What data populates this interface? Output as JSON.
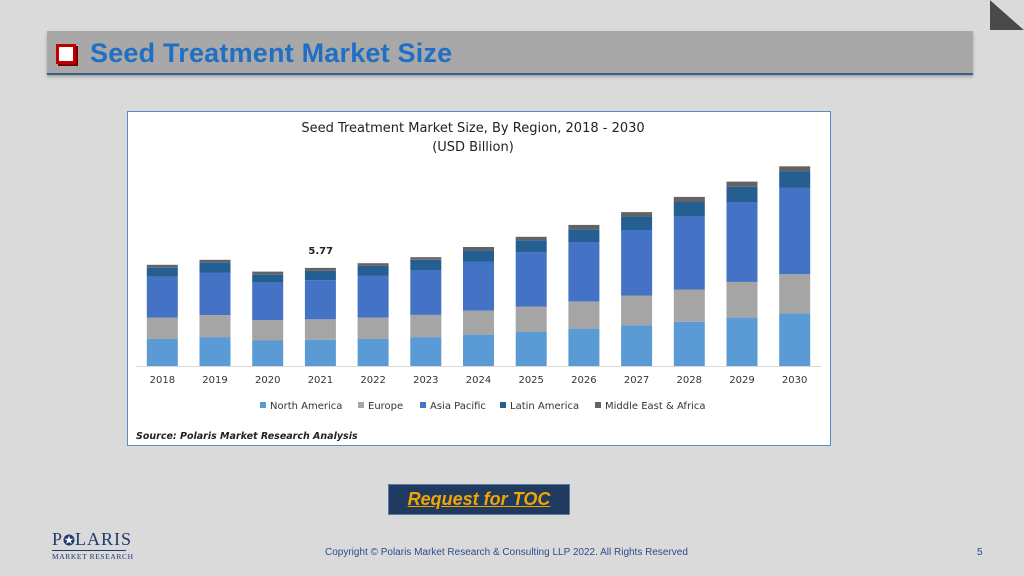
{
  "slide": {
    "title": "Seed Treatment Market Size",
    "toc_label": "Request for TOC",
    "copyright": "Copyright © Polaris Market Research & Consulting LLP 2022. All Rights Reserved",
    "page_number": "5",
    "logo": {
      "main": "POLARIS",
      "sub": "MARKET RESEARCH"
    },
    "colors": {
      "title": "#1f6fc5",
      "accent": "#c00000",
      "toc_bg": "#1f3a5e",
      "toc_text": "#f5a300"
    }
  },
  "chart_data": {
    "type": "bar",
    "stacked": true,
    "title": "Seed Treatment Market Size, By Region, 2018 - 2030",
    "subtitle": "(USD Billion)",
    "categories": [
      "2018",
      "2019",
      "2020",
      "2021",
      "2022",
      "2023",
      "2024",
      "2025",
      "2026",
      "2027",
      "2028",
      "2029",
      "2030"
    ],
    "series": [
      {
        "name": "North America",
        "color": "#5b9bd5",
        "values": [
          1.6,
          1.7,
          1.5,
          1.55,
          1.6,
          1.7,
          1.85,
          2.0,
          2.2,
          2.4,
          2.6,
          2.85,
          3.1
        ]
      },
      {
        "name": "Europe",
        "color": "#a5a5a5",
        "values": [
          1.25,
          1.3,
          1.2,
          1.2,
          1.25,
          1.3,
          1.4,
          1.5,
          1.6,
          1.75,
          1.9,
          2.1,
          2.3
        ]
      },
      {
        "name": "Asia Pacific",
        "color": "#4472c4",
        "values": [
          2.4,
          2.5,
          2.2,
          2.3,
          2.45,
          2.65,
          2.9,
          3.2,
          3.5,
          3.85,
          4.3,
          4.7,
          5.1
        ]
      },
      {
        "name": "Latin America",
        "color": "#255e91",
        "values": [
          0.55,
          0.6,
          0.5,
          0.55,
          0.6,
          0.6,
          0.65,
          0.7,
          0.75,
          0.8,
          0.85,
          0.9,
          0.95
        ]
      },
      {
        "name": "Middle East & Africa",
        "color": "#636363",
        "values": [
          0.15,
          0.15,
          0.15,
          0.17,
          0.15,
          0.15,
          0.2,
          0.2,
          0.25,
          0.25,
          0.3,
          0.3,
          0.3
        ]
      }
    ],
    "annotations": [
      {
        "category": "2021",
        "label": "5.77"
      }
    ],
    "ylim": [
      0,
      12
    ],
    "grid": false,
    "legend_position": "bottom",
    "source": "Source: Polaris  Market Research Analysis"
  }
}
